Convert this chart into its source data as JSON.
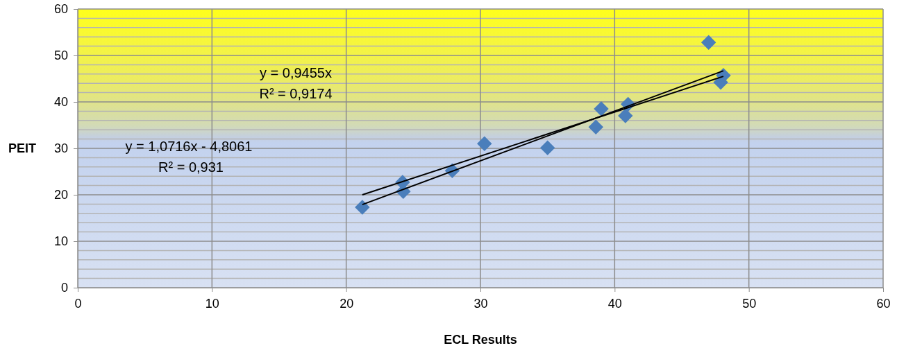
{
  "chart_data": {
    "type": "scatter",
    "xlabel": "ECL Results",
    "ylabel": "PEIT",
    "xlim": [
      0,
      60
    ],
    "ylim": [
      0,
      60
    ],
    "xticks": [
      0,
      10,
      20,
      30,
      40,
      50,
      60
    ],
    "yticks": [
      0,
      10,
      20,
      30,
      40,
      50,
      60
    ],
    "grid": true,
    "series": [
      {
        "color": "#4a7ebb",
        "marker": "diamond",
        "x": [
          21.2,
          24.2,
          24.25,
          27.9,
          30.3,
          35.0,
          38.6,
          39.0,
          40.8,
          41.0,
          47.0,
          47.9,
          48.1
        ],
        "values": [
          17.3,
          22.7,
          20.7,
          25.2,
          31.0,
          30.1,
          34.6,
          38.5,
          37.0,
          39.5,
          52.8,
          44.2,
          45.7
        ]
      },
      {
        "type": "line",
        "color": "#000000",
        "x": [
          21.2,
          48.1
        ],
        "values": [
          17.9,
          46.7
        ]
      },
      {
        "type": "line",
        "color": "#000000",
        "x": [
          21.2,
          48.1
        ],
        "values": [
          20.0,
          45.5
        ]
      }
    ],
    "annotations": [
      "y = 0,9455x",
      "R² = 0,9174",
      "y = 1,0716x - 4,8061",
      "R² = 0,931"
    ]
  }
}
